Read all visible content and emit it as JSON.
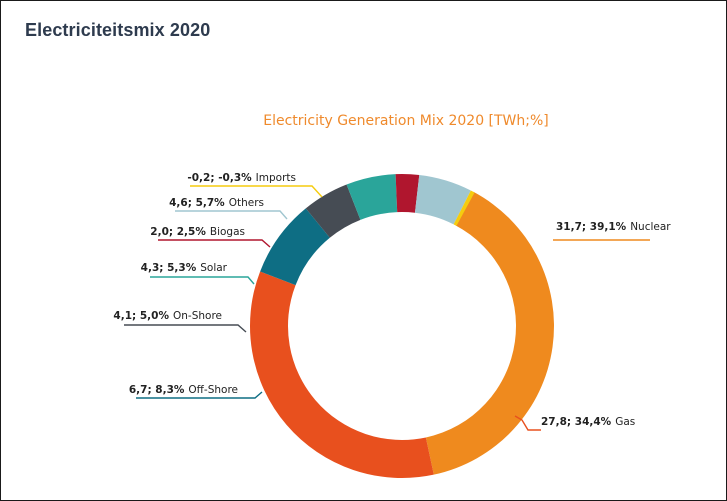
{
  "page": {
    "title": "Electriciteitsmix 2020"
  },
  "chart_data": {
    "type": "pie",
    "donut": true,
    "title": "Electricity Generation Mix 2020 [TWh;%]",
    "unit": "TWh",
    "slices": [
      {
        "name": "Nuclear",
        "value": 31.7,
        "percent": 39.1,
        "value_label": "31,7; 39,1%",
        "color": "#ef8a1e"
      },
      {
        "name": "Gas",
        "value": 27.8,
        "percent": 34.4,
        "value_label": "27,8; 34,4%",
        "color": "#e8501e"
      },
      {
        "name": "Off-Shore",
        "value": 6.7,
        "percent": 8.3,
        "value_label": "6,7; 8,3%",
        "color": "#0e6e84"
      },
      {
        "name": "On-Shore",
        "value": 4.1,
        "percent": 5.0,
        "value_label": "4,1; 5,0%",
        "color": "#464c54"
      },
      {
        "name": "Solar",
        "value": 4.3,
        "percent": 5.3,
        "value_label": "4,3; 5,3%",
        "color": "#2aa59a"
      },
      {
        "name": "Biogas",
        "value": 2.0,
        "percent": 2.5,
        "value_label": "2,0; 2,5%",
        "color": "#b0162e"
      },
      {
        "name": "Others",
        "value": 4.6,
        "percent": 5.7,
        "value_label": "4,6; 5,7%",
        "color": "#a0c6d0"
      },
      {
        "name": "Imports",
        "value": -0.2,
        "percent": -0.3,
        "value_label": "-0,2; -0,3%",
        "color": "#f5cc0e"
      }
    ]
  }
}
